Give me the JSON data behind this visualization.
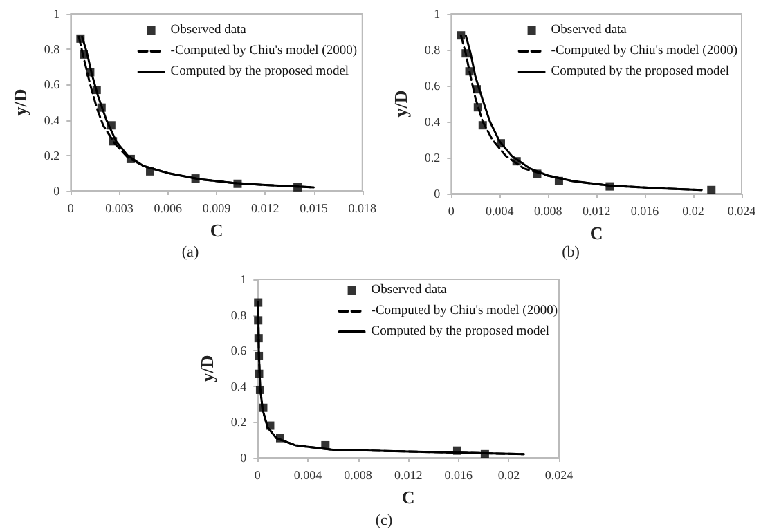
{
  "chart_data": [
    {
      "type": "scatter",
      "xlabel": "C",
      "ylabel": "y/D",
      "annotations": [
        "(a)"
      ],
      "xlim": [
        0,
        0.018
      ],
      "xticks": [
        0,
        0.003,
        0.006,
        0.009,
        0.012,
        0.015,
        0.018
      ],
      "ylim": [
        0,
        1
      ],
      "yticks": [
        0,
        0.2,
        0.4,
        0.6,
        0.8,
        1
      ],
      "grid": false,
      "legend": "top right",
      "series": [
        {
          "name": "Observed data",
          "type": "scatter",
          "marker": "square",
          "color": "#000000",
          "x": [
            0.0006,
            0.0008,
            0.0012,
            0.0016,
            0.0019,
            0.0025,
            0.0026,
            0.0037,
            0.0049,
            0.0077,
            0.0103,
            0.014
          ],
          "values": [
            0.86,
            0.77,
            0.67,
            0.57,
            0.47,
            0.37,
            0.28,
            0.18,
            0.11,
            0.07,
            0.04,
            0.02
          ]
        },
        {
          "name": "-Computed by Chiu's model (2000)",
          "type": "line",
          "marker": "none",
          "line_style": "dashed",
          "color": "#000000",
          "x": [
            0.0005,
            0.0008,
            0.0012,
            0.0016,
            0.002,
            0.0027,
            0.0035,
            0.0045,
            0.006,
            0.008,
            0.01,
            0.012,
            0.015
          ],
          "values": [
            0.87,
            0.75,
            0.6,
            0.47,
            0.37,
            0.27,
            0.19,
            0.14,
            0.1,
            0.065,
            0.045,
            0.033,
            0.02
          ]
        },
        {
          "name": "Computed by the proposed model",
          "type": "line",
          "marker": "none",
          "line_style": "solid",
          "color": "#000000",
          "x": [
            0.0007,
            0.001,
            0.0013,
            0.0017,
            0.0022,
            0.0028,
            0.0035,
            0.0045,
            0.006,
            0.008,
            0.01,
            0.012,
            0.015
          ],
          "values": [
            0.87,
            0.78,
            0.66,
            0.53,
            0.4,
            0.28,
            0.2,
            0.14,
            0.1,
            0.065,
            0.045,
            0.033,
            0.02
          ]
        }
      ]
    },
    {
      "type": "scatter",
      "xlabel": "C",
      "ylabel": "y/D",
      "annotations": [
        "(b)"
      ],
      "xlim": [
        0,
        0.024
      ],
      "xticks": [
        0,
        0.004,
        0.008,
        0.012,
        0.016,
        0.02,
        0.024
      ],
      "ylim": [
        0,
        1
      ],
      "yticks": [
        0,
        0.2,
        0.4,
        0.6,
        0.8,
        1
      ],
      "grid": false,
      "legend": "top right",
      "series": [
        {
          "name": "Observed data",
          "type": "scatter",
          "marker": "square",
          "color": "#000000",
          "x": [
            0.0008,
            0.0012,
            0.0015,
            0.0021,
            0.0022,
            0.0026,
            0.0041,
            0.0054,
            0.0071,
            0.0089,
            0.0131,
            0.0215
          ],
          "values": [
            0.88,
            0.78,
            0.68,
            0.58,
            0.48,
            0.38,
            0.28,
            0.18,
            0.11,
            0.07,
            0.04,
            0.02
          ]
        },
        {
          "name": "-Computed by Chiu's model (2000)",
          "type": "line",
          "marker": "none",
          "line_style": "dashed",
          "color": "#000000",
          "x": [
            0.0008,
            0.0012,
            0.0016,
            0.002,
            0.0026,
            0.0034,
            0.0045,
            0.006,
            0.008,
            0.01,
            0.013,
            0.017,
            0.0207
          ],
          "values": [
            0.88,
            0.78,
            0.65,
            0.53,
            0.4,
            0.3,
            0.21,
            0.14,
            0.1,
            0.07,
            0.045,
            0.03,
            0.02
          ]
        },
        {
          "name": "Computed by the proposed model",
          "type": "line",
          "marker": "none",
          "line_style": "solid",
          "color": "#000000",
          "x": [
            0.0012,
            0.0016,
            0.002,
            0.0026,
            0.0032,
            0.004,
            0.005,
            0.0065,
            0.008,
            0.01,
            0.013,
            0.017,
            0.0207
          ],
          "values": [
            0.88,
            0.78,
            0.65,
            0.52,
            0.4,
            0.29,
            0.21,
            0.14,
            0.1,
            0.07,
            0.045,
            0.03,
            0.02
          ]
        }
      ]
    },
    {
      "type": "scatter",
      "xlabel": "C",
      "ylabel": "y/D",
      "annotations": [
        "(c)"
      ],
      "xlim": [
        0,
        0.024
      ],
      "xticks": [
        0,
        0.004,
        0.008,
        0.012,
        0.016,
        0.02,
        0.024
      ],
      "ylim": [
        0,
        1
      ],
      "yticks": [
        0,
        0.2,
        0.4,
        0.6,
        0.8,
        1
      ],
      "grid": false,
      "legend": "top right",
      "series": [
        {
          "name": "Observed data",
          "type": "scatter",
          "marker": "square",
          "color": "#000000",
          "x": [
            5e-05,
            5e-05,
            8e-05,
            0.0001,
            0.00012,
            0.0002,
            0.00045,
            0.001,
            0.0018,
            0.0054,
            0.0159,
            0.0181
          ],
          "values": [
            0.87,
            0.77,
            0.67,
            0.57,
            0.47,
            0.38,
            0.28,
            0.18,
            0.11,
            0.07,
            0.04,
            0.02
          ]
        },
        {
          "name": "-Computed by Chiu's model (2000)",
          "type": "line",
          "marker": "none",
          "line_style": "dashed",
          "color": "#000000",
          "x": [
            5e-05,
            0.0001,
            0.0002,
            0.0004,
            0.0008,
            0.0015,
            0.003,
            0.006,
            0.012,
            0.0212
          ],
          "values": [
            0.87,
            0.6,
            0.4,
            0.27,
            0.17,
            0.11,
            0.07,
            0.045,
            0.035,
            0.02
          ]
        },
        {
          "name": "Computed by the proposed model",
          "type": "line",
          "marker": "none",
          "line_style": "solid",
          "color": "#000000",
          "x": [
            5e-05,
            0.0001,
            0.0002,
            0.0004,
            0.0008,
            0.0015,
            0.003,
            0.006,
            0.012,
            0.0212
          ],
          "values": [
            0.87,
            0.6,
            0.4,
            0.27,
            0.17,
            0.11,
            0.07,
            0.045,
            0.035,
            0.02
          ]
        }
      ]
    }
  ]
}
